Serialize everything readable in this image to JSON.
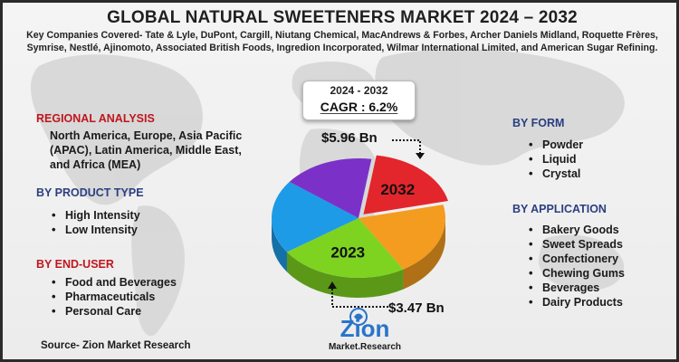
{
  "header": {
    "title": "GLOBAL NATURAL SWEETENERS MARKET 2024 – 2032",
    "subtitle": "Key Companies Covered- Tate & Lyle, DuPont, Cargill, Niutang Chemical, MacAndrews & Forbes, Archer Daniels Midland, Roquette Frères, Symrise, Nestlé, Ajinomoto, Associated British Foods, Ingredion Incorporated, Wilmar International Limited, and American Sugar Refining."
  },
  "cagr": {
    "years": "2024 - 2032",
    "value": "CAGR : 6.2%"
  },
  "regional": {
    "heading": "REGIONAL ANALYSIS",
    "text": "North America, Europe, Asia Pacific (APAC), Latin America, Middle East, and Africa (MEA)"
  },
  "product_type": {
    "heading": "BY PRODUCT TYPE",
    "items": [
      "High Intensity",
      "Low Intensity"
    ]
  },
  "end_user": {
    "heading": "BY END-USER",
    "items": [
      "Food and Beverages",
      "Pharmaceuticals",
      "Personal Care"
    ]
  },
  "form": {
    "heading": "BY FORM",
    "items": [
      "Powder",
      "Liquid",
      "Crystal"
    ]
  },
  "application": {
    "heading": "BY APPLICATION",
    "items": [
      "Bakery Goods",
      "Sweet Spreads",
      "Confectionery",
      "Chewing Gums",
      "Beverages",
      "Dairy Products"
    ]
  },
  "source": "Source- Zion Market Research",
  "logo": {
    "name": "Zion",
    "sub": "Market.Research"
  },
  "colors": {
    "red": "#c0161d",
    "blue": "#2a3f80"
  },
  "chart_data": {
    "type": "pie",
    "slices": [
      {
        "label": "2032",
        "value": 19,
        "color": "#e3262c"
      },
      {
        "label": "",
        "value": 20,
        "color": "#f39c1f"
      },
      {
        "label": "2023",
        "value": 24,
        "color": "#7ed321"
      },
      {
        "label": "",
        "value": 20,
        "color": "#1d9be6"
      },
      {
        "label": "",
        "value": 17,
        "color": "#7b31c7"
      }
    ],
    "annotations": [
      {
        "label": "$5.96 Bn",
        "year": "2032"
      },
      {
        "label": "$3.47 Bn",
        "year": "2023"
      }
    ]
  }
}
